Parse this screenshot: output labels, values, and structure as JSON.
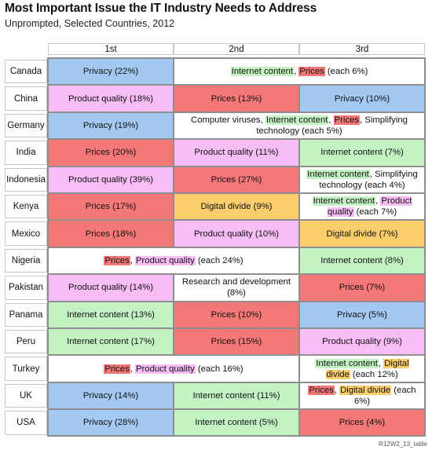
{
  "title": "Most Important Issue the IT Industry Needs to Address",
  "subtitle": "Unprompted, Selected Countries, 2012",
  "footnote": "R12W2_13_table",
  "colors": {
    "Privacy": "#a3c8f2",
    "Product quality": "#f7bdf5",
    "Prices": "#f47878",
    "Internet content": "#c3f2c3",
    "Digital divide": "#fbcd6c",
    "none": "#ffffff"
  },
  "chart_data": {
    "type": "table",
    "columns": [
      "1st",
      "2nd",
      "3rd"
    ],
    "rows": [
      {
        "country": "Canada",
        "cells": [
          {
            "span": 1,
            "color": "Privacy",
            "parts": [
              [
                "Privacy (22%)",
                ""
              ]
            ]
          },
          {
            "span": 2,
            "color": "none",
            "parts": [
              [
                "Internet content",
                "Internet content"
              ],
              [
                ", ",
                ""
              ],
              [
                "Prices",
                "Prices"
              ],
              [
                " (each 6%)",
                ""
              ]
            ]
          }
        ]
      },
      {
        "country": "China",
        "cells": [
          {
            "span": 1,
            "color": "Product quality",
            "parts": [
              [
                "Product quality (18%)",
                ""
              ]
            ]
          },
          {
            "span": 1,
            "color": "Prices",
            "parts": [
              [
                "Prices (13%)",
                ""
              ]
            ]
          },
          {
            "span": 1,
            "color": "Privacy",
            "parts": [
              [
                "Privacy (10%)",
                ""
              ]
            ]
          }
        ]
      },
      {
        "country": "Germany",
        "cells": [
          {
            "span": 1,
            "color": "Privacy",
            "parts": [
              [
                "Privacy (19%)",
                ""
              ]
            ]
          },
          {
            "span": 2,
            "color": "none",
            "parts": [
              [
                "Computer viruses, ",
                ""
              ],
              [
                "Internet content",
                "Internet content"
              ],
              [
                ", ",
                ""
              ],
              [
                "Prices",
                "Prices"
              ],
              [
                ", Simplifying technology (each 5%)",
                ""
              ]
            ]
          }
        ]
      },
      {
        "country": "India",
        "cells": [
          {
            "span": 1,
            "color": "Prices",
            "parts": [
              [
                "Prices (20%)",
                ""
              ]
            ]
          },
          {
            "span": 1,
            "color": "Product quality",
            "parts": [
              [
                "Product quality (11%)",
                ""
              ]
            ]
          },
          {
            "span": 1,
            "color": "Internet content",
            "parts": [
              [
                "Internet content (7%)",
                ""
              ]
            ]
          }
        ]
      },
      {
        "country": "Indonesia",
        "cells": [
          {
            "span": 1,
            "color": "Product quality",
            "parts": [
              [
                "Product quality (39%)",
                ""
              ]
            ]
          },
          {
            "span": 1,
            "color": "Prices",
            "parts": [
              [
                "Prices (27%)",
                ""
              ]
            ]
          },
          {
            "span": 1,
            "color": "none",
            "parts": [
              [
                "Internet content",
                "Internet content"
              ],
              [
                ", Simplifying technology (each 4%)",
                ""
              ]
            ]
          }
        ]
      },
      {
        "country": "Kenya",
        "cells": [
          {
            "span": 1,
            "color": "Prices",
            "parts": [
              [
                "Prices (17%)",
                ""
              ]
            ]
          },
          {
            "span": 1,
            "color": "Digital divide",
            "parts": [
              [
                "Digital divide (9%)",
                ""
              ]
            ]
          },
          {
            "span": 1,
            "color": "none",
            "parts": [
              [
                "Internet content",
                "Internet content"
              ],
              [
                ", ",
                ""
              ],
              [
                "Product quality",
                "Product quality"
              ],
              [
                " (each 7%)",
                ""
              ]
            ]
          }
        ]
      },
      {
        "country": "Mexico",
        "cells": [
          {
            "span": 1,
            "color": "Prices",
            "parts": [
              [
                "Prices (18%)",
                ""
              ]
            ]
          },
          {
            "span": 1,
            "color": "Product quality",
            "parts": [
              [
                "Product quality (10%)",
                ""
              ]
            ]
          },
          {
            "span": 1,
            "color": "Digital divide",
            "parts": [
              [
                "Digital divide (7%)",
                ""
              ]
            ]
          }
        ]
      },
      {
        "country": "Nigeria",
        "cells": [
          {
            "span": 2,
            "color": "none",
            "parts": [
              [
                "Prices",
                "Prices"
              ],
              [
                ", ",
                ""
              ],
              [
                "Product quality",
                "Product quality"
              ],
              [
                " (each 24%)",
                ""
              ]
            ]
          },
          {
            "span": 1,
            "color": "Internet content",
            "parts": [
              [
                "Internet content (8%)",
                ""
              ]
            ]
          }
        ]
      },
      {
        "country": "Pakistan",
        "cells": [
          {
            "span": 1,
            "color": "Product quality",
            "parts": [
              [
                "Product quality (14%)",
                ""
              ]
            ]
          },
          {
            "span": 1,
            "color": "none",
            "parts": [
              [
                "Research and development (8%)",
                ""
              ]
            ]
          },
          {
            "span": 1,
            "color": "Prices",
            "parts": [
              [
                "Prices (7%)",
                ""
              ]
            ]
          }
        ]
      },
      {
        "country": "Panama",
        "cells": [
          {
            "span": 1,
            "color": "Internet content",
            "parts": [
              [
                "Internet content (13%)",
                ""
              ]
            ]
          },
          {
            "span": 1,
            "color": "Prices",
            "parts": [
              [
                "Prices (10%)",
                ""
              ]
            ]
          },
          {
            "span": 1,
            "color": "Privacy",
            "parts": [
              [
                "Privacy (5%)",
                ""
              ]
            ]
          }
        ]
      },
      {
        "country": "Peru",
        "cells": [
          {
            "span": 1,
            "color": "Internet content",
            "parts": [
              [
                "Internet content (17%)",
                ""
              ]
            ]
          },
          {
            "span": 1,
            "color": "Prices",
            "parts": [
              [
                "Prices (15%)",
                ""
              ]
            ]
          },
          {
            "span": 1,
            "color": "Product quality",
            "parts": [
              [
                "Product quality (9%)",
                ""
              ]
            ]
          }
        ]
      },
      {
        "country": "Turkey",
        "cells": [
          {
            "span": 2,
            "color": "none",
            "parts": [
              [
                "Prices",
                "Prices"
              ],
              [
                ", ",
                ""
              ],
              [
                "Product quality",
                "Product quality"
              ],
              [
                " (each 16%)",
                ""
              ]
            ]
          },
          {
            "span": 1,
            "color": "none",
            "parts": [
              [
                "Internet content",
                "Internet content"
              ],
              [
                ", ",
                ""
              ],
              [
                "Digital divide",
                "Digital divide"
              ],
              [
                " (each 12%)",
                ""
              ]
            ]
          }
        ]
      },
      {
        "country": "UK",
        "cells": [
          {
            "span": 1,
            "color": "Privacy",
            "parts": [
              [
                "Privacy (14%)",
                ""
              ]
            ]
          },
          {
            "span": 1,
            "color": "Internet content",
            "parts": [
              [
                "Internet content (11%)",
                ""
              ]
            ]
          },
          {
            "span": 1,
            "color": "none",
            "parts": [
              [
                "Prices",
                "Prices"
              ],
              [
                ", ",
                ""
              ],
              [
                "Digital divide",
                "Digital divide"
              ],
              [
                " (each 6%)",
                ""
              ]
            ]
          }
        ]
      },
      {
        "country": "USA",
        "cells": [
          {
            "span": 1,
            "color": "Privacy",
            "parts": [
              [
                "Privacy (28%)",
                ""
              ]
            ]
          },
          {
            "span": 1,
            "color": "Internet content",
            "parts": [
              [
                "Internet content (5%)",
                ""
              ]
            ]
          },
          {
            "span": 1,
            "color": "Prices",
            "parts": [
              [
                "Prices (4%)",
                ""
              ]
            ]
          }
        ]
      }
    ]
  }
}
